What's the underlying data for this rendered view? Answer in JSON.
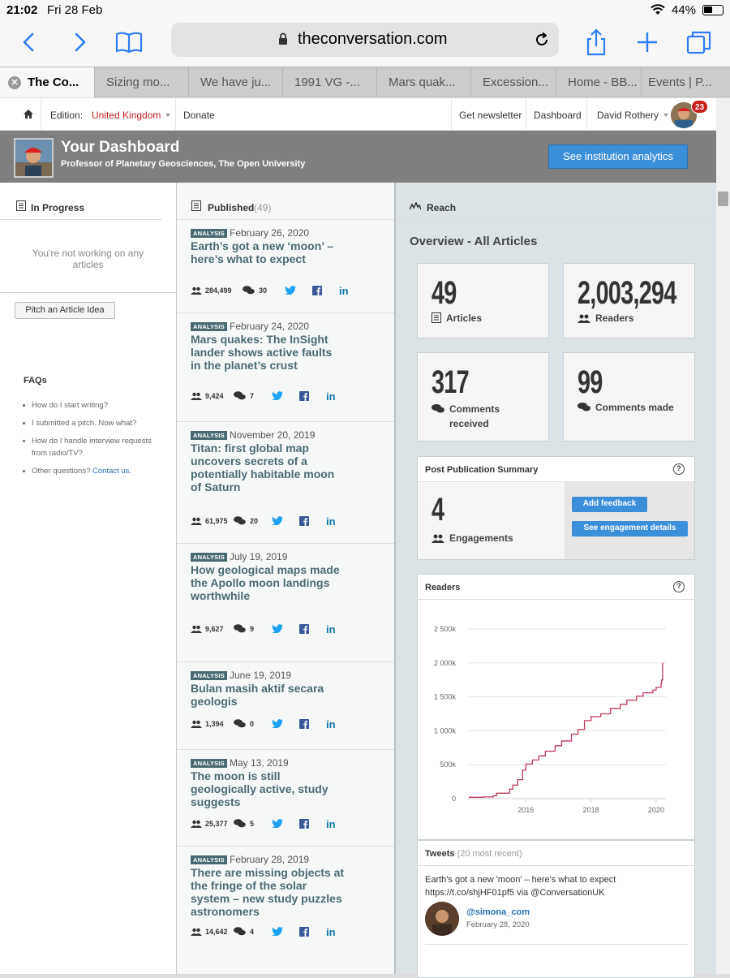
{
  "status_bar": {
    "time": "21:02",
    "date": "Fri 28 Feb",
    "battery": "44%",
    "battery_level": 0.44
  },
  "browser": {
    "url": "theconversation.com",
    "tabs": [
      "The Co...",
      "Sizing mo...",
      "We have ju...",
      "1991 VG -...",
      "Mars quak...",
      "Excession...",
      "Home - BB...",
      "Events | P..."
    ]
  },
  "site_header": {
    "edition_label": "Edition:",
    "edition_value": "United Kingdom",
    "donate": "Donate",
    "newsletter": "Get newsletter",
    "dashboard": "Dashboard",
    "user": "David Rothery",
    "notifications": "23"
  },
  "dashboard": {
    "title": "Your Dashboard",
    "subtitle": "Professor of Planetary Geosciences, The Open University",
    "institution_button": "See institution analytics"
  },
  "in_progress": {
    "heading": "In Progress",
    "empty_text": "You're not working on any articles",
    "pitch_button": "Pitch an Article Idea",
    "faq_heading": "FAQs",
    "faqs": [
      "How do I start writing?",
      "I submitted a pitch. Now what?",
      "How do I handle interview requests from radio/TV?",
      "Other questions?"
    ],
    "contact_link": "Contact us."
  },
  "published": {
    "heading": "Published",
    "count": "(49)",
    "articles": [
      {
        "tag": "ANALYSIS",
        "date": "February 26, 2020",
        "title": "Earth’s got a new ‘moon’ – here’s what to expect",
        "readers": "284,499",
        "comments": "30"
      },
      {
        "tag": "ANALYSIS",
        "date": "February 24, 2020",
        "title": "Mars quakes: The InSight lander shows active faults in the planet’s crust",
        "readers": "9,424",
        "comments": "7"
      },
      {
        "tag": "ANALYSIS",
        "date": "November 20, 2019",
        "title": "Titan: first global map uncovers secrets of a potentially habitable moon of Saturn",
        "readers": "61,975",
        "comments": "20"
      },
      {
        "tag": "ANALYSIS",
        "date": "July 19, 2019",
        "title": "How geological maps made the Apollo moon landings worthwhile",
        "readers": "9,627",
        "comments": "9"
      },
      {
        "tag": "ANALYSIS",
        "date": "June 19, 2019",
        "title": "Bulan masih aktif secara geologis",
        "readers": "1,394",
        "comments": "0"
      },
      {
        "tag": "ANALYSIS",
        "date": "May 13, 2019",
        "title": "The moon is still geologically active, study suggests",
        "readers": "25,377",
        "comments": "5"
      },
      {
        "tag": "ANALYSIS",
        "date": "February 28, 2019",
        "title": "There are missing objects at the fringe of the solar system – new study puzzles astronomers",
        "readers": "14,642",
        "comments": "4"
      }
    ]
  },
  "reach": {
    "heading": "Reach",
    "overview_title": "Overview - All Articles",
    "stats": [
      {
        "value": "49",
        "label": "Articles",
        "icon": "document-icon"
      },
      {
        "value": "2,003,294",
        "label": "Readers",
        "icon": "people-icon"
      },
      {
        "value": "317",
        "label": "Comments received",
        "icon": "comments-icon"
      },
      {
        "value": "99",
        "label": "Comments made",
        "icon": "comments-icon"
      }
    ],
    "post_pub": {
      "title": "Post Publication Summary",
      "value": "4",
      "label": "Engagements",
      "add_feedback": "Add feedback",
      "see_details": "See engagement details"
    },
    "readers_chart_title": "Readers",
    "tweets": {
      "heading": "Tweets",
      "sub": "(20 most recent)",
      "text": "Earth's got a new 'moon' – here's what to expect https://t.co/shjHF01pf5 via @ConversationUK",
      "handle": "@simona_com",
      "date": "February 28, 2020"
    }
  },
  "chart_data": {
    "type": "line",
    "title": "Readers",
    "xlabel": "",
    "ylabel": "",
    "xlim": [
      2014.2,
      2020.3
    ],
    "ylim": [
      0,
      2500000
    ],
    "x_ticks": [
      "2016",
      "2018",
      "2020"
    ],
    "y_ticks": [
      "0",
      "500k",
      "1 000k",
      "1 500k",
      "2 000k",
      "2 500k"
    ],
    "colors": {
      "line": "#c0395a"
    },
    "series": [
      {
        "x": [
          2014.25,
          2014.7,
          2015.0,
          2015.1,
          2015.5,
          2015.6,
          2015.75,
          2015.9,
          2016.0,
          2016.2,
          2016.4,
          2016.6,
          2016.9,
          2017.1,
          2017.4,
          2017.6,
          2017.8,
          2018.0,
          2018.3,
          2018.6,
          2018.9,
          2019.1,
          2019.4,
          2019.6,
          2019.9,
          2020.0,
          2020.15,
          2020.17,
          2020.2
        ],
        "y": [
          20000,
          25000,
          40000,
          80000,
          140000,
          200000,
          280000,
          420000,
          510000,
          570000,
          630000,
          700000,
          780000,
          850000,
          950000,
          1020000,
          1150000,
          1210000,
          1250000,
          1330000,
          1390000,
          1450000,
          1510000,
          1560000,
          1600000,
          1640000,
          1700000,
          1750000,
          2003294
        ]
      }
    ]
  }
}
